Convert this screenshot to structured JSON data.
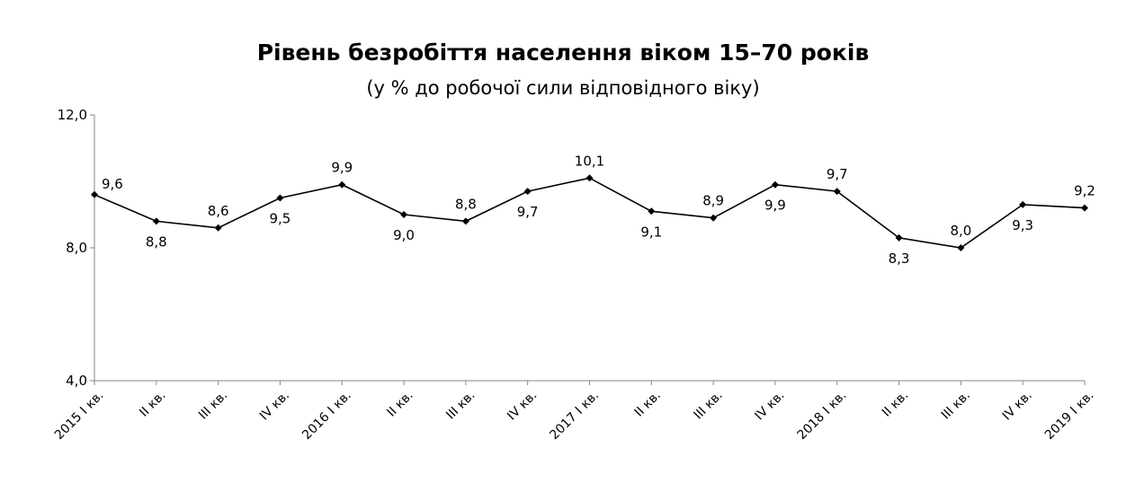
{
  "chart_data": {
    "type": "line",
    "title": "Рівень безробіття населення віком 15–70 років",
    "subtitle": "(у % до робочої сили відповідного віку)",
    "xlabel": "",
    "ylabel": "",
    "ylim": [
      4.0,
      12.0
    ],
    "yticks": [
      "4,0",
      "8,0",
      "12,0"
    ],
    "ytick_values": [
      4.0,
      8.0,
      12.0
    ],
    "categories": [
      "2015 І кв.",
      "ІІ кв.",
      "ІІІ кв.",
      "IV кв.",
      "2016 І кв.",
      "ІІ кв.",
      "ІІІ кв.",
      "IV кв.",
      "2017 І кв.",
      "ІІ кв.",
      "ІІІ кв.",
      "IV кв.",
      "2018 І кв.",
      "ІІ кв.",
      "ІІІ кв.",
      "IV кв.",
      "2019 І кв."
    ],
    "series": [
      {
        "name": "Рівень безробіття",
        "values": [
          9.6,
          8.8,
          8.6,
          9.5,
          9.9,
          9.0,
          8.8,
          9.7,
          10.1,
          9.1,
          8.9,
          9.9,
          9.7,
          8.3,
          8.0,
          9.3,
          9.2
        ],
        "labels": [
          "9,6",
          "8,8",
          "8,6",
          "9,5",
          "9,9",
          "9,0",
          "8,8",
          "9,7",
          "10,1",
          "9,1",
          "8,9",
          "9,9",
          "9,7",
          "8,3",
          "8,0",
          "9,3",
          "9,2"
        ],
        "label_positions": [
          "right",
          "below",
          "above",
          "below",
          "above",
          "below",
          "above",
          "below",
          "above",
          "below",
          "above",
          "below",
          "above",
          "below",
          "above",
          "below",
          "above"
        ],
        "color": "#000000"
      }
    ],
    "grid": false,
    "legend": "none"
  }
}
